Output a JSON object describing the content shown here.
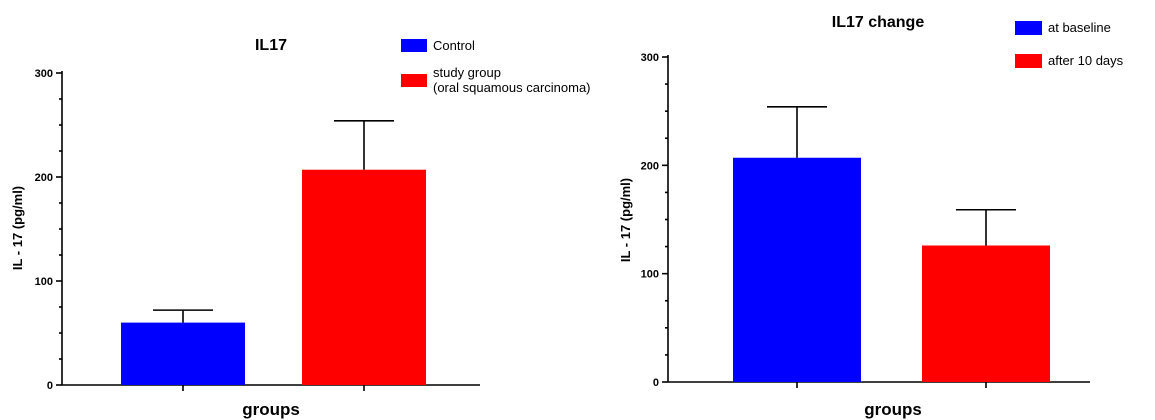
{
  "chart_data": [
    {
      "type": "bar",
      "title": "IL17",
      "xlabel": "groups",
      "ylabel": "IL - 17 (pg/ml)",
      "ylim": [
        0,
        300
      ],
      "yticks": [
        "0",
        "100",
        "200",
        "300"
      ],
      "legend_position": "top-right",
      "series": [
        {
          "name": "Control",
          "value": 60,
          "error": 12,
          "color": "#0000ff"
        },
        {
          "name": "study group\n(oral squamous carcinoma)",
          "value": 207,
          "error": 47,
          "color": "#ff0000"
        }
      ]
    },
    {
      "type": "bar",
      "title": "IL17 change",
      "xlabel": "groups",
      "ylabel": "IL - 17 (pg/ml)",
      "ylim": [
        0,
        300
      ],
      "yticks": [
        "0",
        "100",
        "200",
        "300"
      ],
      "legend_position": "top-right",
      "series": [
        {
          "name": "at baseline",
          "value": 207,
          "error": 47,
          "color": "#0000ff"
        },
        {
          "name": "after 10 days",
          "value": 126,
          "error": 33,
          "color": "#ff0000"
        }
      ]
    }
  ]
}
